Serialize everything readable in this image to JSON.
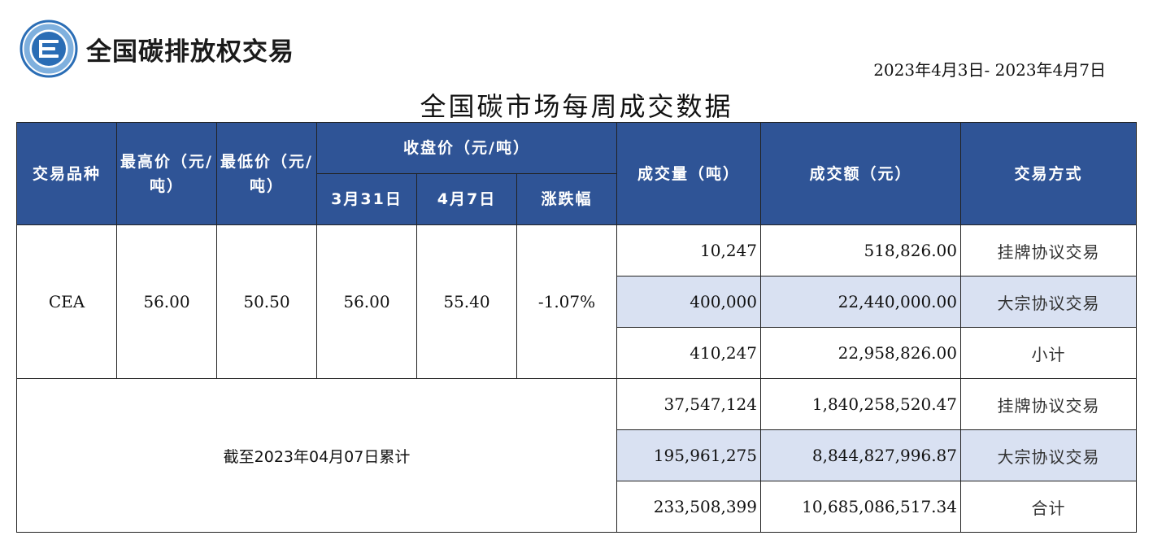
{
  "brand": {
    "name": "全国碳排放权交易"
  },
  "header": {
    "date_range": "2023年4月3日- 2023年4月7日",
    "title": "全国碳市场每周成交数据"
  },
  "table": {
    "headers": {
      "variety": "交易品种",
      "high": "最高价（元/吨）",
      "low": "最低价（元/吨）",
      "close_group": "收盘价（元/吨）",
      "close_prev": "3月31日",
      "close_curr": "4月7日",
      "change": "涨跌幅",
      "volume": "成交量（吨）",
      "amount": "成交额（元）",
      "method": "交易方式"
    },
    "weekly": {
      "variety": "CEA",
      "high": "56.00",
      "low": "50.50",
      "close_prev": "56.00",
      "close_curr": "55.40",
      "change": "-1.07%",
      "rows": [
        {
          "volume": "10,247",
          "amount": "518,826.00",
          "method": "挂牌协议交易"
        },
        {
          "volume": "400,000",
          "amount": "22,440,000.00",
          "method": "大宗协议交易"
        },
        {
          "volume": "410,247",
          "amount": "22,958,826.00",
          "method": "小计"
        }
      ]
    },
    "cumulative": {
      "label": "截至2023年04月07日累计",
      "rows": [
        {
          "volume": "37,547,124",
          "amount": "1,840,258,520.47",
          "method": "挂牌协议交易"
        },
        {
          "volume": "195,961,275",
          "amount": "8,844,827,996.87",
          "method": "大宗协议交易"
        },
        {
          "volume": "233,508,399",
          "amount": "10,685,086,517.34",
          "method": "合计"
        }
      ]
    }
  },
  "colors": {
    "header_bg": "#2f5496",
    "shade": "#d9e1f2",
    "logo_blue": "#2a6db5"
  },
  "icons": {
    "logo": "carbon-exchange-logo"
  }
}
